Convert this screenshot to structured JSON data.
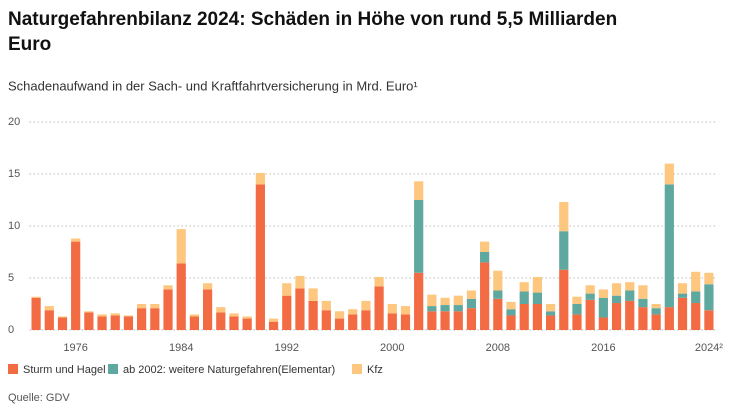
{
  "chart_data": {
    "type": "bar",
    "stacked": true,
    "title_lines": [
      "Naturgefahrenbilanz 2024:  Schäden in  Höhe von rund 5,5 Milliarden",
      "Euro"
    ],
    "subtitle": "Schadenaufwand in der Sach- und Kraftfahrtversicherung in Mrd. Euro¹",
    "source": "Quelle: GDV",
    "categories": [
      null,
      null,
      null,
      "1976",
      null,
      null,
      null,
      null,
      null,
      null,
      null,
      "1984",
      null,
      null,
      null,
      null,
      null,
      null,
      null,
      "1992",
      null,
      null,
      null,
      null,
      null,
      null,
      null,
      "2000",
      null,
      null,
      null,
      null,
      null,
      null,
      null,
      "2008",
      null,
      null,
      null,
      null,
      null,
      null,
      null,
      "2016",
      null,
      null,
      null,
      null,
      null,
      null,
      null,
      "2024²"
    ],
    "series": [
      {
        "name": "Sturm und Hagel",
        "color": "#f26b43",
        "values": [
          3.1,
          1.9,
          1.2,
          8.5,
          1.7,
          1.3,
          1.4,
          1.3,
          2.1,
          2.1,
          3.9,
          6.4,
          1.3,
          3.9,
          1.7,
          1.3,
          1.1,
          14.0,
          0.8,
          3.3,
          4.0,
          2.8,
          1.9,
          1.1,
          1.5,
          1.9,
          4.2,
          1.6,
          1.5,
          5.5,
          1.8,
          1.8,
          1.8,
          2.1,
          6.5,
          3.0,
          1.4,
          2.5,
          2.5,
          1.4,
          5.8,
          1.5,
          2.9,
          1.2,
          2.6,
          2.8,
          2.2,
          1.5,
          2.2,
          3.1,
          2.6,
          1.9
        ]
      },
      {
        "name": "ab 2002: weitere Naturgefahren(Elementar)",
        "color": "#5fa8a0",
        "values": [
          0,
          0,
          0,
          0,
          0,
          0,
          0,
          0,
          0,
          0,
          0,
          0,
          0,
          0,
          0,
          0,
          0,
          0,
          0,
          0,
          0,
          0,
          0,
          0,
          0,
          0,
          0,
          0,
          0,
          7.0,
          0.5,
          0.6,
          0.6,
          0.9,
          1.0,
          0.8,
          0.6,
          1.2,
          1.1,
          0.4,
          3.7,
          1.0,
          0.6,
          1.9,
          0.7,
          1.0,
          0.8,
          0.6,
          11.8,
          0.4,
          1.1,
          2.5
        ]
      },
      {
        "name": "Kfz",
        "color": "#fdc77f",
        "values": [
          0.1,
          0.4,
          0.1,
          0.3,
          0.1,
          0.2,
          0.2,
          0.1,
          0.4,
          0.4,
          0.4,
          3.3,
          0.2,
          0.6,
          0.5,
          0.3,
          0.2,
          1.1,
          0.3,
          1.2,
          1.2,
          1.2,
          0.9,
          0.7,
          0.5,
          0.9,
          0.9,
          0.9,
          0.8,
          1.8,
          1.1,
          0.7,
          0.9,
          0.8,
          1.0,
          1.9,
          0.7,
          0.9,
          1.5,
          0.7,
          2.8,
          0.7,
          0.8,
          0.8,
          1.2,
          0.8,
          1.3,
          0.4,
          2.0,
          1.0,
          1.9,
          1.1
        ]
      }
    ],
    "ylim": [
      0,
      20
    ],
    "yticks": [
      0,
      5,
      10,
      15,
      20
    ],
    "grid": true
  }
}
